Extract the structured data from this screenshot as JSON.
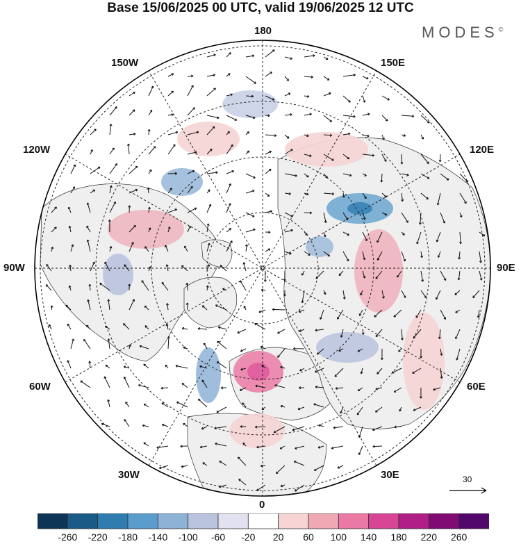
{
  "title": "Base 15/06/2025 00 UTC, valid 19/06/2025 12 UTC",
  "brand": "MODES",
  "brand_mark": "©",
  "longitude_labels": {
    "n": "180",
    "s": "0",
    "w": "90W",
    "e": "90E",
    "nw150": "150W",
    "ne150": "150E",
    "nw120": "120W",
    "ne120": "120E",
    "sw60": "60W",
    "se60": "60E",
    "sw30": "30W",
    "se30": "30E"
  },
  "wind_scale_label": "30",
  "colorbar": {
    "labels": [
      "-260",
      "-220",
      "-180",
      "-140",
      "-100",
      "-60",
      "-20",
      "20",
      "60",
      "100",
      "140",
      "180",
      "220",
      "260"
    ],
    "colors": [
      "#0f3556",
      "#1a5a86",
      "#2f7db0",
      "#5a9ccb",
      "#8eb1d6",
      "#b9c3de",
      "#e1e1ef",
      "#ffffff",
      "#f6d4d4",
      "#efa8b4",
      "#ea7aa4",
      "#d84595",
      "#b01e86",
      "#800b73",
      "#52086a"
    ]
  },
  "colors": {
    "land": "#efefef",
    "ocean": "#ffffff",
    "border": "#111111"
  }
}
